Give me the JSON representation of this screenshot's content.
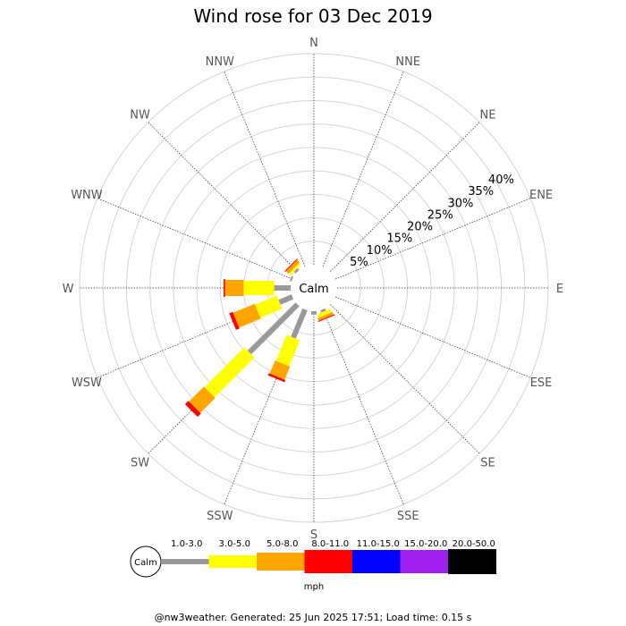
{
  "chart_data": {
    "type": "wind-rose",
    "title": "Wind rose for 03 Dec 2019",
    "directions": [
      "N",
      "NNE",
      "NE",
      "ENE",
      "E",
      "ESE",
      "SE",
      "SSE",
      "S",
      "SSW",
      "SW",
      "WSW",
      "W",
      "WNW",
      "NW",
      "NNW"
    ],
    "radial_ticks": [
      "5%",
      "10%",
      "15%",
      "20%",
      "25%",
      "30%",
      "35%",
      "40%"
    ],
    "radial_values": [
      5,
      10,
      15,
      20,
      25,
      30,
      35,
      40
    ],
    "radial_max": 45,
    "calm_label": "Calm",
    "speed_bins": [
      "1.0-3.0",
      "3.0-5.0",
      "5.0-8.0",
      "8.0-11.0",
      "11.0-15.0",
      "15.0-20.0",
      "20.0-50.0"
    ],
    "bin_colors": [
      "#999999",
      "#ffff00",
      "#ffa500",
      "#ff0000",
      "#0000ff",
      "#a020f0",
      "#000000"
    ],
    "unit": "mph",
    "series": [
      {
        "direction": "SSE",
        "cumulative": [
          0.5,
          1.3,
          1.9,
          2.1
        ]
      },
      {
        "direction": "S",
        "cumulative": [
          0.7,
          0.7,
          0.7,
          0.7
        ]
      },
      {
        "direction": "SSW",
        "cumulative": [
          6.5,
          12.5,
          15.5,
          16.0
        ]
      },
      {
        "direction": "SW",
        "cumulative": [
          14.5,
          26.5,
          31.0,
          32.0
        ]
      },
      {
        "direction": "WSW",
        "cumulative": [
          3.0,
          8.0,
          13.0,
          13.8
        ]
      },
      {
        "direction": "W",
        "cumulative": [
          3.5,
          10.0,
          14.0,
          14.3
        ]
      },
      {
        "direction": "WNW",
        "cumulative": [
          0.4,
          0.4,
          0.4,
          0.4
        ]
      },
      {
        "direction": "NW",
        "cumulative": [
          0.5,
          1.0,
          1.8,
          2.0
        ]
      }
    ]
  },
  "footer": {
    "site": "@nw3weather.",
    "generated": "Generated: 25 Jun 2025 17:51;",
    "load": "Load time: 0.15 s"
  }
}
